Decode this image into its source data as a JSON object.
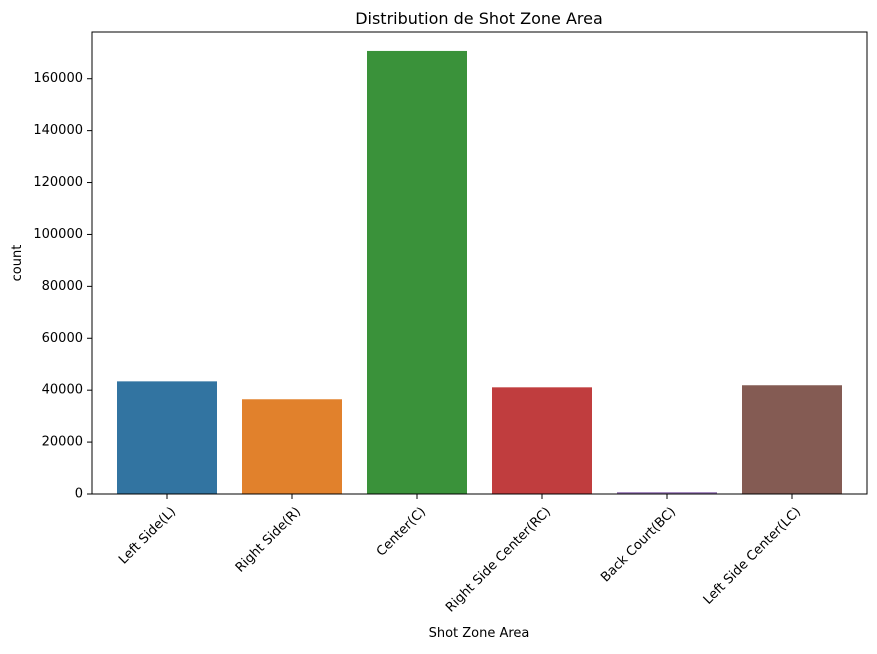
{
  "chart_data": {
    "type": "bar",
    "title": "Distribution de Shot Zone Area",
    "xlabel": "Shot Zone Area",
    "ylabel": "count",
    "categories": [
      "Left Side(L)",
      "Right Side(R)",
      "Center(C)",
      "Right Side Center(RC)",
      "Back Court(BC)",
      "Left Side Center(LC)"
    ],
    "values": [
      43400,
      36500,
      170700,
      41100,
      700,
      41900
    ],
    "colors": [
      "#3274a1",
      "#e1812c",
      "#3a923a",
      "#c03d3e",
      "#9372b2",
      "#845b53"
    ],
    "ylim": [
      0,
      178000
    ],
    "yticks": [
      0,
      20000,
      40000,
      60000,
      80000,
      100000,
      120000,
      140000,
      160000
    ],
    "ytick_labels": [
      "0",
      "20000",
      "40000",
      "60000",
      "80000",
      "100000",
      "120000",
      "140000",
      "160000"
    ],
    "grid": false
  }
}
